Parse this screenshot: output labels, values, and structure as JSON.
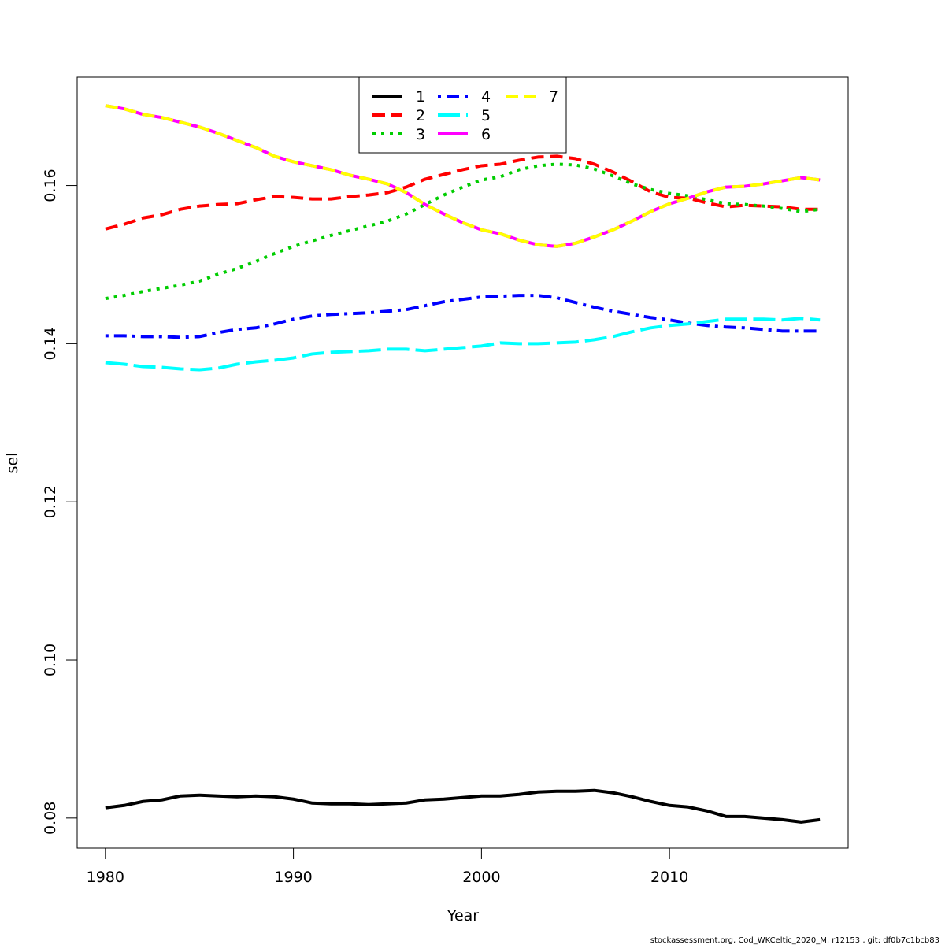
{
  "chart_data": {
    "type": "line",
    "xlabel": "Year",
    "ylabel": "sel",
    "xlim": [
      1978.5,
      2019.5
    ],
    "ylim": [
      0.0762,
      0.1737
    ],
    "xticks": [
      1980,
      1990,
      2000,
      2010
    ],
    "xtick_labels": [
      "1980",
      "1990",
      "2000",
      "2010"
    ],
    "yticks": [
      0.08,
      0.1,
      0.12,
      0.14,
      0.16
    ],
    "ytick_labels": [
      "0.08",
      "0.10",
      "0.12",
      "0.14",
      "0.16"
    ],
    "grid": false,
    "legend_position": "top-center",
    "x": [
      1980,
      1981,
      1982,
      1983,
      1984,
      1985,
      1986,
      1987,
      1988,
      1989,
      1990,
      1991,
      1992,
      1993,
      1994,
      1995,
      1996,
      1997,
      1998,
      1999,
      2000,
      2001,
      2002,
      2003,
      2004,
      2005,
      2006,
      2007,
      2008,
      2009,
      2010,
      2011,
      2012,
      2013,
      2014,
      2015,
      2016,
      2017,
      2018
    ],
    "series": [
      {
        "name": "1",
        "color": "#000000",
        "dash": "solid",
        "values": [
          0.0813,
          0.0816,
          0.0821,
          0.0823,
          0.0828,
          0.0829,
          0.0828,
          0.0827,
          0.0828,
          0.0827,
          0.0824,
          0.0819,
          0.0818,
          0.0818,
          0.0817,
          0.0818,
          0.0819,
          0.0823,
          0.0824,
          0.0826,
          0.0828,
          0.0828,
          0.083,
          0.0833,
          0.0834,
          0.0834,
          0.0835,
          0.0832,
          0.0827,
          0.0821,
          0.0816,
          0.0814,
          0.0809,
          0.0802,
          0.0802,
          0.08,
          0.0798,
          0.0795,
          0.0798
        ]
      },
      {
        "name": "2",
        "color": "#ff0000",
        "dash": "dashed",
        "values": [
          0.1545,
          0.1551,
          0.1559,
          0.1563,
          0.157,
          0.1574,
          0.1576,
          0.1577,
          0.1582,
          0.1586,
          0.1585,
          0.1583,
          0.1583,
          0.1586,
          0.1588,
          0.1591,
          0.1598,
          0.1608,
          0.1614,
          0.162,
          0.1625,
          0.1627,
          0.1632,
          0.1636,
          0.1637,
          0.1634,
          0.1627,
          0.1617,
          0.1605,
          0.1592,
          0.1585,
          0.1584,
          0.1578,
          0.1573,
          0.1575,
          0.1574,
          0.1573,
          0.157,
          0.157
        ]
      },
      {
        "name": "3",
        "color": "#00cd00",
        "dash": "dotted",
        "values": [
          0.1457,
          0.1461,
          0.1466,
          0.147,
          0.1474,
          0.1479,
          0.1488,
          0.1495,
          0.1504,
          0.1514,
          0.1523,
          0.153,
          0.1537,
          0.1543,
          0.1549,
          0.1555,
          0.1564,
          0.1576,
          0.1588,
          0.1598,
          0.1607,
          0.1611,
          0.162,
          0.1625,
          0.1627,
          0.1626,
          0.1621,
          0.1612,
          0.1602,
          0.1595,
          0.159,
          0.1587,
          0.1582,
          0.1577,
          0.1576,
          0.1574,
          0.1571,
          0.1567,
          0.157
        ]
      },
      {
        "name": "4",
        "color": "#0000ff",
        "dash": "dashdot",
        "values": [
          0.141,
          0.141,
          0.1409,
          0.1409,
          0.1408,
          0.1409,
          0.1414,
          0.1418,
          0.142,
          0.1425,
          0.1431,
          0.1435,
          0.1437,
          0.1438,
          0.1439,
          0.1441,
          0.1443,
          0.1448,
          0.1453,
          0.1456,
          0.1459,
          0.146,
          0.1461,
          0.1461,
          0.1458,
          0.1452,
          0.1446,
          0.1441,
          0.1437,
          0.1433,
          0.143,
          0.1426,
          0.1423,
          0.1421,
          0.142,
          0.1418,
          0.1416,
          0.1416,
          0.1416
        ]
      },
      {
        "name": "5",
        "color": "#00ffff",
        "dash": "longdash",
        "values": [
          0.1376,
          0.1374,
          0.1371,
          0.137,
          0.1368,
          0.1367,
          0.1369,
          0.1374,
          0.1377,
          0.1379,
          0.1382,
          0.1387,
          0.1389,
          0.139,
          0.1391,
          0.1393,
          0.1393,
          0.1391,
          0.1393,
          0.1395,
          0.1397,
          0.1401,
          0.14,
          0.14,
          0.1401,
          0.1402,
          0.1405,
          0.1409,
          0.1415,
          0.142,
          0.1423,
          0.1425,
          0.1428,
          0.1431,
          0.1431,
          0.1431,
          0.143,
          0.1432,
          0.143
        ]
      },
      {
        "name": "6",
        "color": "#ff00ff",
        "dash": "solid",
        "values": [
          0.1701,
          0.1697,
          0.169,
          0.1686,
          0.168,
          0.1674,
          0.1666,
          0.1657,
          0.1648,
          0.1637,
          0.163,
          0.1625,
          0.162,
          0.1613,
          0.1608,
          0.1602,
          0.1591,
          0.1576,
          0.1564,
          0.1553,
          0.1544,
          0.1539,
          0.1531,
          0.1525,
          0.1523,
          0.1527,
          0.1535,
          0.1544,
          0.1555,
          0.1567,
          0.1577,
          0.1584,
          0.1592,
          0.1598,
          0.1599,
          0.1602,
          0.1606,
          0.161,
          0.1607
        ]
      },
      {
        "name": "7",
        "color": "#ffff00",
        "dash": "dashed",
        "values": [
          0.1701,
          0.1697,
          0.169,
          0.1686,
          0.168,
          0.1674,
          0.1666,
          0.1657,
          0.1648,
          0.1637,
          0.163,
          0.1625,
          0.162,
          0.1613,
          0.1608,
          0.1602,
          0.1591,
          0.1576,
          0.1564,
          0.1553,
          0.1544,
          0.1539,
          0.1531,
          0.1525,
          0.1523,
          0.1527,
          0.1535,
          0.1544,
          0.1555,
          0.1567,
          0.1577,
          0.1584,
          0.1592,
          0.1598,
          0.1599,
          0.1602,
          0.1606,
          0.161,
          0.1607
        ]
      }
    ]
  },
  "footer": {
    "text": "stockassessment.org, Cod_WKCeltic_2020_M, r12153 , git: df0b7c1bcb83"
  }
}
